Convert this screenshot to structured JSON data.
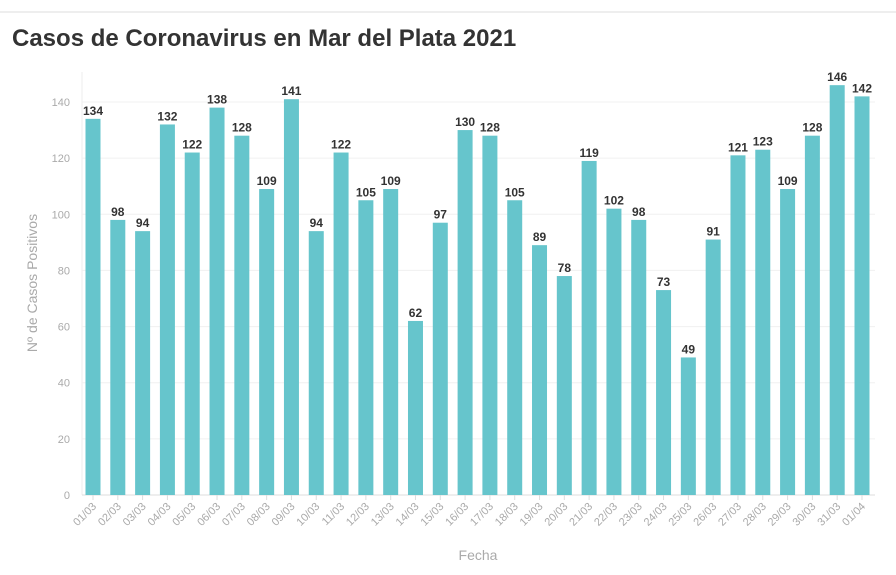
{
  "chart_data": {
    "type": "bar",
    "title": "Casos de Coronavirus en Mar del Plata 2021",
    "xlabel": "Fecha",
    "ylabel": "Nº de Casos Positivos",
    "ylim": [
      0,
      150
    ],
    "yticks": [
      0,
      20,
      40,
      60,
      80,
      100,
      120,
      140
    ],
    "grid": true,
    "bar_color": "#66c5cc",
    "categories": [
      "01/03",
      "02/03",
      "03/03",
      "04/03",
      "05/03",
      "06/03",
      "07/03",
      "08/03",
      "09/03",
      "10/03",
      "11/03",
      "12/03",
      "13/03",
      "14/03",
      "15/03",
      "16/03",
      "17/03",
      "18/03",
      "19/03",
      "20/03",
      "21/03",
      "22/03",
      "23/03",
      "24/03",
      "25/03",
      "26/03",
      "27/03",
      "28/03",
      "29/03",
      "30/03",
      "31/03",
      "01/04"
    ],
    "values": [
      134,
      98,
      94,
      132,
      122,
      138,
      128,
      109,
      141,
      94,
      122,
      105,
      109,
      62,
      97,
      130,
      128,
      105,
      89,
      78,
      119,
      102,
      98,
      73,
      49,
      91,
      121,
      123,
      109,
      128,
      146,
      142
    ]
  }
}
